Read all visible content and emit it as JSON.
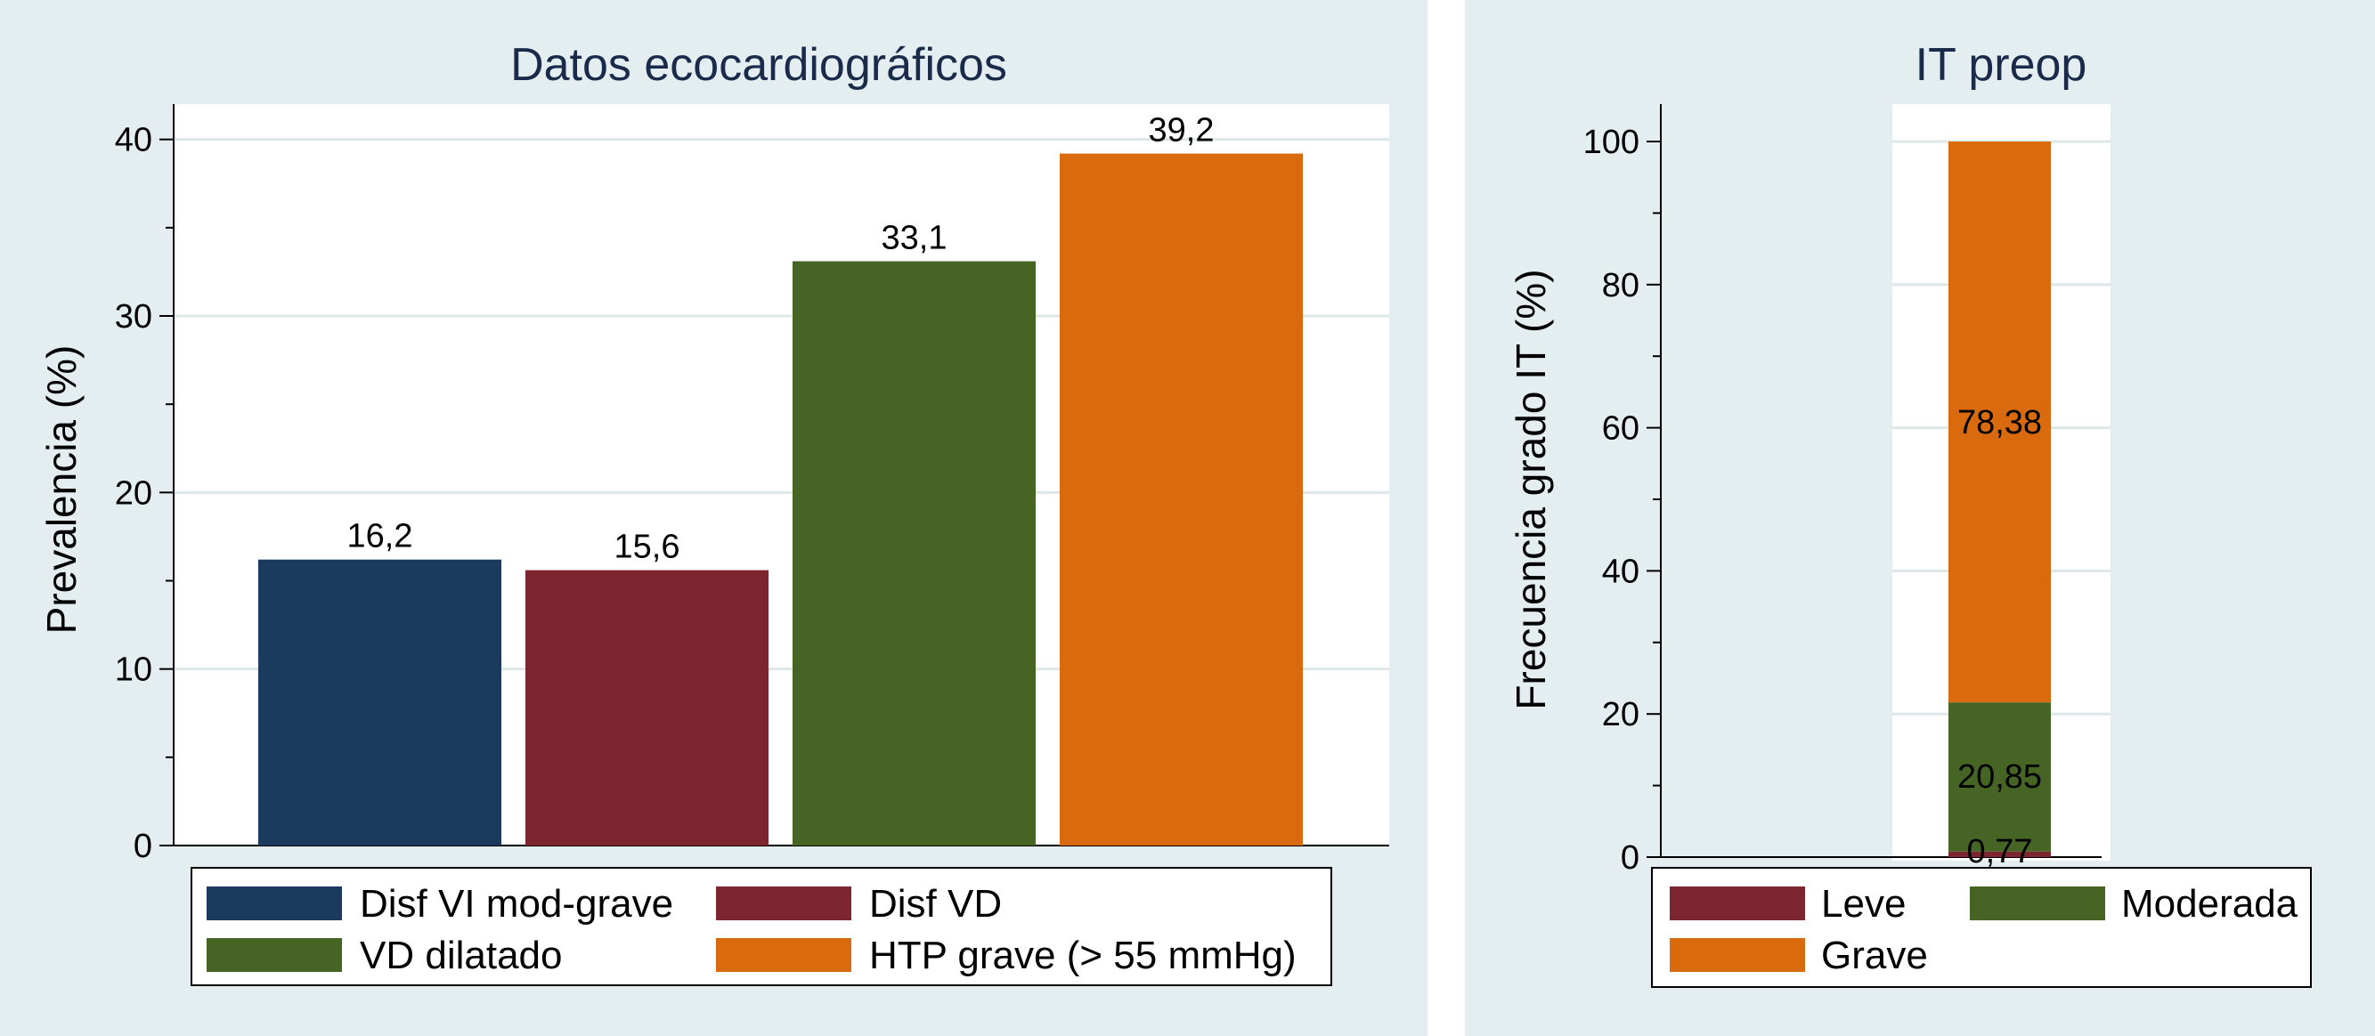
{
  "chart_data": [
    {
      "type": "bar",
      "title": "Datos ecocardiográficos",
      "xlabel": "",
      "ylabel": "Prevalencia (%)",
      "ylim": [
        0,
        42
      ],
      "yticks": [
        0,
        10,
        20,
        30,
        40
      ],
      "grid": true,
      "legend_position": "bottom",
      "series": [
        {
          "name": "Disf VI mod-grave",
          "value": 16.2,
          "label": "16,2",
          "color": "#1a3a5e"
        },
        {
          "name": "Disf VD",
          "value": 15.6,
          "label": "15,6",
          "color": "#7d2630"
        },
        {
          "name": "VD dilatado",
          "value": 33.1,
          "label": "33,1",
          "color": "#466524"
        },
        {
          "name": "HTP grave (> 55 mmHg)",
          "value": 39.2,
          "label": "39,2",
          "color": "#d96a0e"
        }
      ]
    },
    {
      "type": "bar",
      "stacked": true,
      "title": "IT preop",
      "xlabel": "",
      "ylabel": "Frecuencia grado IT (%)",
      "ylim": [
        0,
        105
      ],
      "yticks": [
        0,
        20,
        40,
        60,
        80,
        100
      ],
      "grid": true,
      "legend_position": "bottom",
      "series": [
        {
          "name": "Leve",
          "value": 0.77,
          "label": "0,77",
          "color": "#7d2630"
        },
        {
          "name": "Moderada",
          "value": 20.85,
          "label": "20,85",
          "color": "#466524"
        },
        {
          "name": "Grave",
          "value": 78.38,
          "label": "78,38",
          "color": "#d96a0e"
        }
      ]
    }
  ]
}
